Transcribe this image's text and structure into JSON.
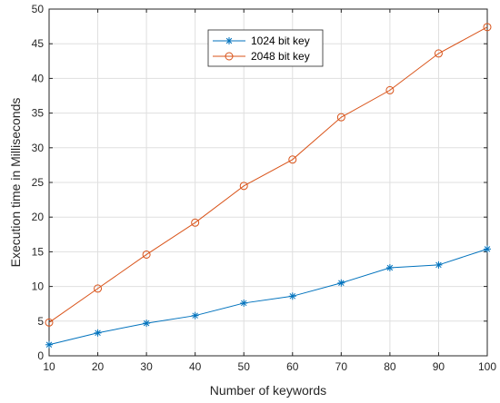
{
  "chart_data": {
    "type": "line",
    "title": "",
    "xlabel": "Number of keywords",
    "ylabel": "Execution time in Milliseconds",
    "xlim": [
      10,
      100
    ],
    "ylim": [
      0,
      50
    ],
    "xticks": [
      10,
      20,
      30,
      40,
      50,
      60,
      70,
      80,
      90,
      100
    ],
    "yticks": [
      0,
      5,
      10,
      15,
      20,
      25,
      30,
      35,
      40,
      45,
      50
    ],
    "grid": true,
    "legend_position": "top-center",
    "x": [
      10,
      20,
      30,
      40,
      50,
      60,
      70,
      80,
      90,
      100
    ],
    "series": [
      {
        "name": "1024 bit key",
        "marker": "asterisk",
        "color": "#0072BD",
        "values": [
          1.6,
          3.3,
          4.7,
          5.8,
          7.6,
          8.6,
          10.5,
          12.7,
          13.1,
          15.4
        ]
      },
      {
        "name": "2048 bit key",
        "marker": "circle",
        "color": "#D95319",
        "values": [
          4.8,
          9.7,
          14.6,
          19.2,
          24.5,
          28.3,
          34.4,
          38.3,
          43.6,
          47.4
        ]
      }
    ]
  }
}
